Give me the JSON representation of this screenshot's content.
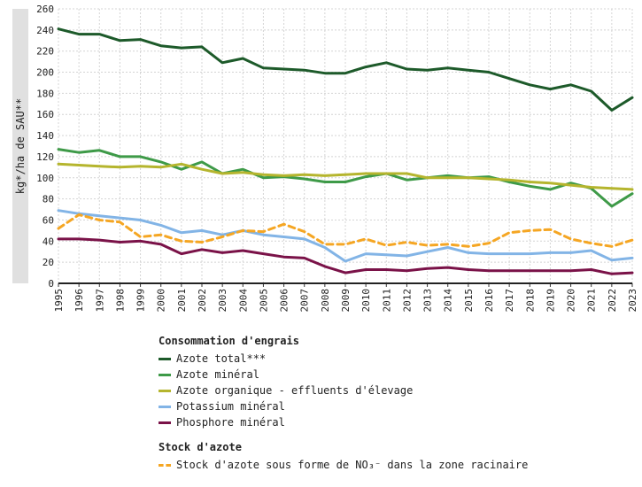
{
  "chart_data": {
    "type": "line",
    "ylabel": "kg*/ha de SAU**",
    "ylim": [
      0,
      260
    ],
    "yticks": [
      0,
      20,
      40,
      60,
      80,
      100,
      120,
      140,
      160,
      180,
      200,
      220,
      240,
      260
    ],
    "grid": true,
    "categories": [
      "1995",
      "1996",
      "1997",
      "1998",
      "1999",
      "2000",
      "2001",
      "2002",
      "2003",
      "2004",
      "2005",
      "2006",
      "2007",
      "2008",
      "2009",
      "2010",
      "2011",
      "2012",
      "2013",
      "2014",
      "2015",
      "2016",
      "2017",
      "2018",
      "2019",
      "2020",
      "2021",
      "2022",
      "2023"
    ],
    "groups": [
      {
        "title": "Consommation d'engrais",
        "series": [
          0,
          1,
          2,
          3,
          4
        ]
      },
      {
        "title": "Stock d'azote",
        "series": [
          5
        ]
      }
    ],
    "series": [
      {
        "name": "Azote total***",
        "color": "#1d5a2a",
        "dashed": false,
        "values": [
          241,
          236,
          236,
          230,
          231,
          225,
          223,
          224,
          209,
          213,
          204,
          203,
          202,
          199,
          199,
          205,
          209,
          203,
          202,
          204,
          202,
          200,
          194,
          188,
          184,
          188,
          182,
          164,
          176
        ]
      },
      {
        "name": "Azote minéral",
        "color": "#3e9a48",
        "dashed": false,
        "values": [
          127,
          124,
          126,
          120,
          120,
          115,
          108,
          115,
          104,
          108,
          100,
          101,
          99,
          96,
          96,
          101,
          104,
          98,
          100,
          102,
          100,
          101,
          96,
          92,
          89,
          95,
          90,
          73,
          85
        ]
      },
      {
        "name": "Azote organique - effluents d'élevage",
        "color": "#b5b52e",
        "dashed": false,
        "values": [
          113,
          112,
          111,
          110,
          111,
          110,
          113,
          108,
          104,
          105,
          103,
          102,
          103,
          102,
          103,
          104,
          104,
          104,
          100,
          100,
          100,
          99,
          98,
          96,
          95,
          93,
          91,
          90,
          89
        ]
      },
      {
        "name": "Potassium minéral",
        "color": "#82b4e6",
        "dashed": false,
        "values": [
          69,
          66,
          64,
          62,
          60,
          55,
          48,
          50,
          46,
          50,
          46,
          44,
          42,
          34,
          21,
          28,
          27,
          26,
          30,
          34,
          29,
          28,
          28,
          28,
          29,
          29,
          31,
          22,
          24
        ]
      },
      {
        "name": "Phosphore minéral",
        "color": "#7a1248",
        "dashed": false,
        "values": [
          42,
          42,
          41,
          39,
          40,
          37,
          28,
          32,
          29,
          31,
          28,
          25,
          24,
          16,
          10,
          13,
          13,
          12,
          14,
          15,
          13,
          12,
          12,
          12,
          12,
          12,
          13,
          9,
          10
        ]
      },
      {
        "name": "Stock d'azote sous forme de NO₃⁻ dans la zone racinaire",
        "color": "#f5a623",
        "dashed": true,
        "values": [
          52,
          65,
          60,
          58,
          44,
          46,
          40,
          39,
          44,
          50,
          49,
          56,
          49,
          37,
          37,
          42,
          36,
          39,
          36,
          37,
          35,
          38,
          48,
          50,
          51,
          42,
          38,
          35,
          41
        ]
      }
    ]
  }
}
